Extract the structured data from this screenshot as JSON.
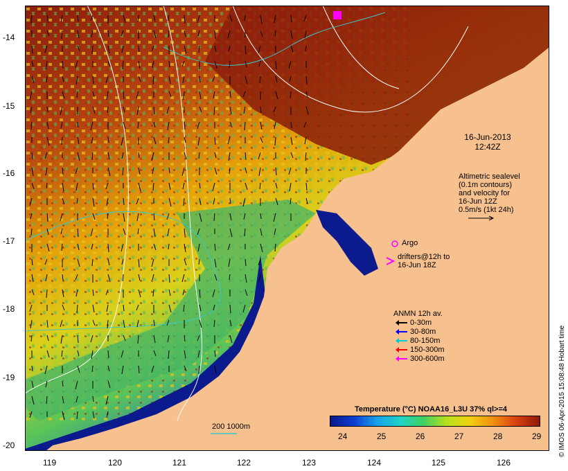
{
  "date": "16-Jun-2013",
  "time": "12:42Z",
  "altimetry_note": [
    "Altimetric sealevel",
    "(0.1m contours)",
    "and velocity for",
    "16-Jun 12Z",
    "0.5m/s (1kt 24h)"
  ],
  "argo_label": "Argo",
  "drifters_note": [
    "drifters@12h to",
    "16-Jun 18Z"
  ],
  "anmn_title": "ANMN 12h av.",
  "anmn_items": [
    {
      "label": "0-30m",
      "color": "#000000"
    },
    {
      "label": "30-80m",
      "color": "#0000ff"
    },
    {
      "label": "80-150m",
      "color": "#00cccc"
    },
    {
      "label": "150-300m",
      "color": "#ff0000"
    },
    {
      "label": "300-600m",
      "color": "#ff00ff"
    }
  ],
  "colorbar": {
    "title": "Temperature (°C) NOAA16_L3U 37% ql>=4",
    "ticks": [
      "24",
      "25",
      "26",
      "27",
      "28",
      "29"
    ]
  },
  "isobath_label": "200  1000m",
  "credit": "© IMOS 06-Apr-2015 15:08:48 Hobart time",
  "lat_ticks": [
    "-14",
    "-15",
    "-16",
    "-17",
    "-18",
    "-19",
    "-20"
  ],
  "lon_ticks": [
    "119",
    "120",
    "121",
    "122",
    "123",
    "124",
    "125",
    "126"
  ],
  "colors": {
    "land": "#f7c08f",
    "warm": "#a52a10",
    "cold": "#0b1a8c"
  }
}
